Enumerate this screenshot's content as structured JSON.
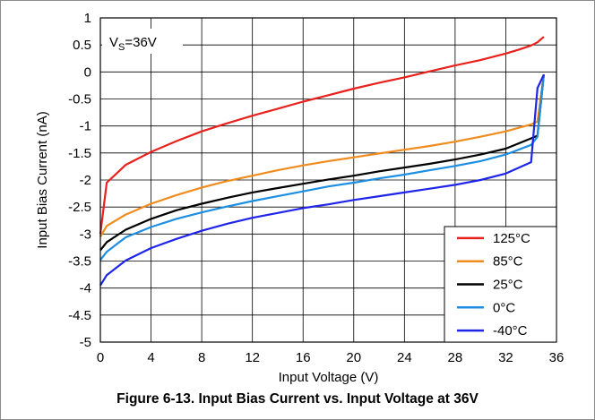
{
  "figure": {
    "caption": "Figure 6-13. Input Bias Current vs. Input Voltage at 36V"
  },
  "chart_data": {
    "type": "line",
    "annotation": {
      "main": "V",
      "sub": "S",
      "rest": "=36V"
    },
    "xlabel": "Input Voltage (V)",
    "ylabel": "Input Bias Current (nA)",
    "xlim": [
      0,
      36
    ],
    "ylim": [
      -5,
      1
    ],
    "xticks": [
      0,
      4,
      8,
      12,
      16,
      20,
      24,
      28,
      32,
      36
    ],
    "yticks": [
      1,
      0.5,
      0,
      -0.5,
      -1,
      -1.5,
      -2,
      -2.5,
      -3,
      -3.5,
      -4,
      -4.5,
      -5
    ],
    "ytick_labels": [
      "1",
      "0.5",
      "0",
      "-0.5",
      "-1",
      "-1.5",
      "-2",
      "-2.5",
      "-3",
      "-3.5",
      "-4",
      "-4.5",
      "-5"
    ],
    "grid": true,
    "legend_position": "bottom-right",
    "series": [
      {
        "name": "125°C",
        "color": "#e8211c",
        "x": [
          0,
          0.5,
          2,
          4,
          6,
          8,
          10,
          12,
          14,
          16,
          18,
          20,
          22,
          24,
          26,
          28,
          30,
          32,
          33,
          34,
          34.5,
          35
        ],
        "y": [
          -3.0,
          -2.05,
          -1.72,
          -1.48,
          -1.28,
          -1.1,
          -0.95,
          -0.81,
          -0.68,
          -0.55,
          -0.43,
          -0.31,
          -0.2,
          -0.1,
          0.01,
          0.12,
          0.22,
          0.34,
          0.41,
          0.49,
          0.55,
          0.65
        ]
      },
      {
        "name": "85°C",
        "color": "#f08c1e",
        "x": [
          0,
          0.5,
          2,
          4,
          6,
          8,
          10,
          12,
          14,
          16,
          18,
          20,
          22,
          24,
          26,
          28,
          30,
          32,
          34,
          34.5,
          35
        ],
        "y": [
          -3.05,
          -2.85,
          -2.64,
          -2.44,
          -2.28,
          -2.14,
          -2.02,
          -1.92,
          -1.82,
          -1.73,
          -1.65,
          -1.58,
          -1.51,
          -1.44,
          -1.37,
          -1.29,
          -1.2,
          -1.1,
          -0.97,
          -0.92,
          -0.05
        ]
      },
      {
        "name": "25°C",
        "color": "#000000",
        "x": [
          0,
          0.5,
          2,
          4,
          6,
          8,
          10,
          12,
          14,
          16,
          18,
          20,
          22,
          24,
          26,
          28,
          30,
          32,
          34,
          34.5,
          35
        ],
        "y": [
          -3.3,
          -3.15,
          -2.92,
          -2.72,
          -2.56,
          -2.44,
          -2.33,
          -2.23,
          -2.15,
          -2.07,
          -1.99,
          -1.92,
          -1.84,
          -1.77,
          -1.7,
          -1.62,
          -1.53,
          -1.42,
          -1.23,
          -1.18,
          -0.05
        ]
      },
      {
        "name": "0°C",
        "color": "#1c8fe3",
        "x": [
          0,
          0.5,
          2,
          4,
          6,
          8,
          10,
          12,
          14,
          16,
          18,
          20,
          22,
          24,
          26,
          28,
          30,
          32,
          34,
          34.5,
          35
        ],
        "y": [
          -3.48,
          -3.33,
          -3.06,
          -2.87,
          -2.72,
          -2.6,
          -2.49,
          -2.39,
          -2.3,
          -2.21,
          -2.12,
          -2.05,
          -1.97,
          -1.9,
          -1.82,
          -1.74,
          -1.65,
          -1.53,
          -1.35,
          -1.2,
          -0.05
        ]
      },
      {
        "name": "-40°C",
        "color": "#1f25e8",
        "x": [
          0,
          0.5,
          2,
          4,
          6,
          8,
          10,
          12,
          14,
          16,
          18,
          20,
          22,
          24,
          26,
          28,
          30,
          32,
          34,
          34.5,
          35
        ],
        "y": [
          -3.95,
          -3.76,
          -3.49,
          -3.26,
          -3.09,
          -2.94,
          -2.81,
          -2.7,
          -2.61,
          -2.52,
          -2.45,
          -2.37,
          -2.3,
          -2.23,
          -2.16,
          -2.09,
          -2.0,
          -1.88,
          -1.67,
          -0.3,
          -0.05
        ]
      }
    ]
  }
}
